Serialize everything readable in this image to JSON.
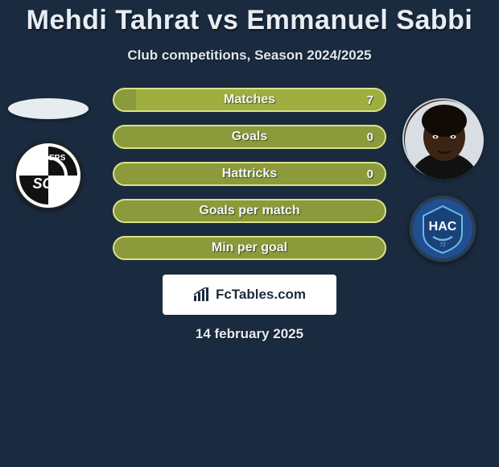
{
  "title": "Mehdi Tahrat vs Emmanuel Sabbi",
  "subtitle": "Club competitions, Season 2024/2025",
  "date": "14 february 2025",
  "fctables_label": "FcTables.com",
  "colors": {
    "page_bg": "#1a2b3f",
    "bar_bg": "#8b9a3a",
    "bar_border": "#dbe28a",
    "bar_fill": "#9eae3f",
    "text": "#e8edf3"
  },
  "stats": [
    {
      "label": "Matches",
      "left_pct": 0,
      "right_pct": 92,
      "right_value": "7"
    },
    {
      "label": "Goals",
      "left_pct": 0,
      "right_pct": 0,
      "right_value": "0"
    },
    {
      "label": "Hattricks",
      "left_pct": 0,
      "right_pct": 0,
      "right_value": "0"
    },
    {
      "label": "Goals per match",
      "left_pct": 0,
      "right_pct": 0,
      "right_value": ""
    },
    {
      "label": "Min per goal",
      "left_pct": 0,
      "right_pct": 0,
      "right_value": ""
    }
  ],
  "left": {
    "player": "Mehdi Tahrat",
    "club": "Angers SCO",
    "club_text": "ANGERS",
    "club_sub": "SCO",
    "club_bg": "#ffffff",
    "club_stripe": "#111111"
  },
  "right": {
    "player": "Emmanuel Sabbi",
    "club": "Le Havre AC",
    "club_text": "HAC",
    "club_bg": "#1f4f8f",
    "club_accent": "#6fb8e6"
  }
}
